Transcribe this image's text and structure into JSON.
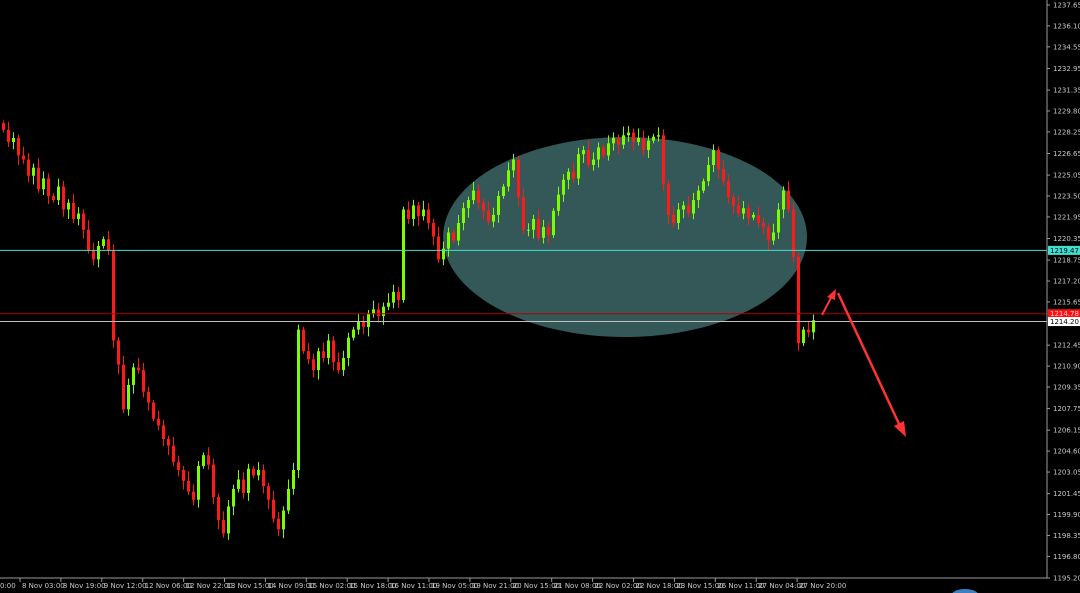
{
  "chart_data": {
    "type": "candlestick",
    "title": "",
    "xlabel": "",
    "ylabel": "",
    "ylim": [
      1195.2,
      1237.65
    ],
    "grid": false,
    "colors": {
      "background": "#000000",
      "bullish": "#7CFC00",
      "bearish": "#FF1A1A",
      "axis": "#9a9a9a"
    },
    "y_ticks": [
      "1237.65",
      "1236.10",
      "1234.55",
      "1232.95",
      "1231.35",
      "1229.80",
      "1228.25",
      "1226.65",
      "1225.05",
      "1223.50",
      "1221.95",
      "1220.35",
      "1218.75",
      "1217.20",
      "1215.65",
      "1212.45",
      "1210.90",
      "1209.35",
      "1207.75",
      "1206.15",
      "1204.60",
      "1203.05",
      "1201.45",
      "1199.90",
      "1198.35",
      "1196.80",
      "1195.20"
    ],
    "x_ticks": [
      "0:00",
      "8 Nov 03:00",
      "8 Nov 19:00",
      "9 Nov 12:00",
      "12 Nov 06:00",
      "12 Nov 22:00",
      "13 Nov 15:00",
      "14 Nov 09:00",
      "15 Nov 02:00",
      "15 Nov 18:00",
      "16 Nov 11:00",
      "19 Nov 05:00",
      "19 Nov 21:00",
      "20 Nov 15:00",
      "21 Nov 08:00",
      "22 Nov 02:00",
      "22 Nov 18:00",
      "23 Nov 15:00",
      "26 Nov 11:00",
      "27 Nov 04:00",
      "27 Nov 20:00"
    ],
    "close": [
      1228.4,
      1227.5,
      1227.8,
      1226.5,
      1226.2,
      1225,
      1225.6,
      1224,
      1224.8,
      1223.5,
      1223.2,
      1224.2,
      1222.5,
      1223,
      1221.8,
      1222.2,
      1221,
      1219.5,
      1218.8,
      1219.8,
      1220.3,
      1219.5,
      1212.8,
      1211,
      1207.7,
      1209.5,
      1210.8,
      1210.6,
      1209,
      1208.2,
      1207,
      1206.5,
      1205.5,
      1205,
      1203.8,
      1203.2,
      1202.4,
      1201.6,
      1201,
      1203.5,
      1204.3,
      1203.6,
      1201.2,
      1199.5,
      1198.5,
      1200.5,
      1201.8,
      1202.5,
      1201.5,
      1203.3,
      1202.8,
      1203.2,
      1202,
      1201,
      1199.6,
      1198.8,
      1200.2,
      1201.8,
      1203.2,
      1213.6,
      1212,
      1211.4,
      1210.6,
      1212,
      1211.5,
      1212.8,
      1211.2,
      1210.6,
      1211.5,
      1213,
      1213.6,
      1214.2,
      1213.8,
      1214.8,
      1215.1,
      1214.6,
      1215.3,
      1215.6,
      1216.4,
      1215.8,
      1222.5,
      1221.8,
      1222.8,
      1222,
      1222.5,
      1221.5,
      1220.5,
      1218.8,
      1219.6,
      1220.8,
      1220.2,
      1221.5,
      1222.6,
      1223.2,
      1223.9,
      1223,
      1222.4,
      1221.6,
      1222.1,
      1223.5,
      1224.2,
      1225.4,
      1226.2,
      1223.4,
      1221,
      1221,
      1221.8,
      1220.4,
      1221.2,
      1220.6,
      1222.4,
      1223.6,
      1224.7,
      1225.3,
      1224.8,
      1226.6,
      1226.9,
      1225.8,
      1226.2,
      1227.1,
      1226.5,
      1227.4,
      1227.8,
      1227.3,
      1228,
      1228.2,
      1227.5,
      1227.8,
      1226.9,
      1227.6,
      1227.9,
      1228,
      1224.4,
      1222.1,
      1221.5,
      1222.5,
      1222.8,
      1222.2,
      1223.2,
      1223.9,
      1224.6,
      1225.8,
      1226.9,
      1225.5,
      1224.6,
      1223.4,
      1222.8,
      1222.2,
      1222.6,
      1221.9,
      1222.1,
      1221.5,
      1221.2,
      1220.2,
      1220.8,
      1222.5,
      1223.9,
      1222.5,
      1219,
      1212.6,
      1213.6,
      1213.4,
      1214.3
    ],
    "horizontal_lines": [
      {
        "price": "1219.47",
        "color": "#40E0D0",
        "label": "1219.47"
      },
      {
        "price": "1214.78",
        "color": "#B00000",
        "label": "1214.78"
      },
      {
        "price": "1214.20",
        "color": "#C0C0C0",
        "label": "1214.20"
      }
    ],
    "annotations": [
      {
        "type": "ellipse",
        "color": "#5F9EA0",
        "description": "highlighted consolidation zone"
      },
      {
        "type": "arrow",
        "color": "#FF3333",
        "direction": "up"
      },
      {
        "type": "arrow",
        "color": "#FF3333",
        "direction": "down"
      }
    ]
  }
}
